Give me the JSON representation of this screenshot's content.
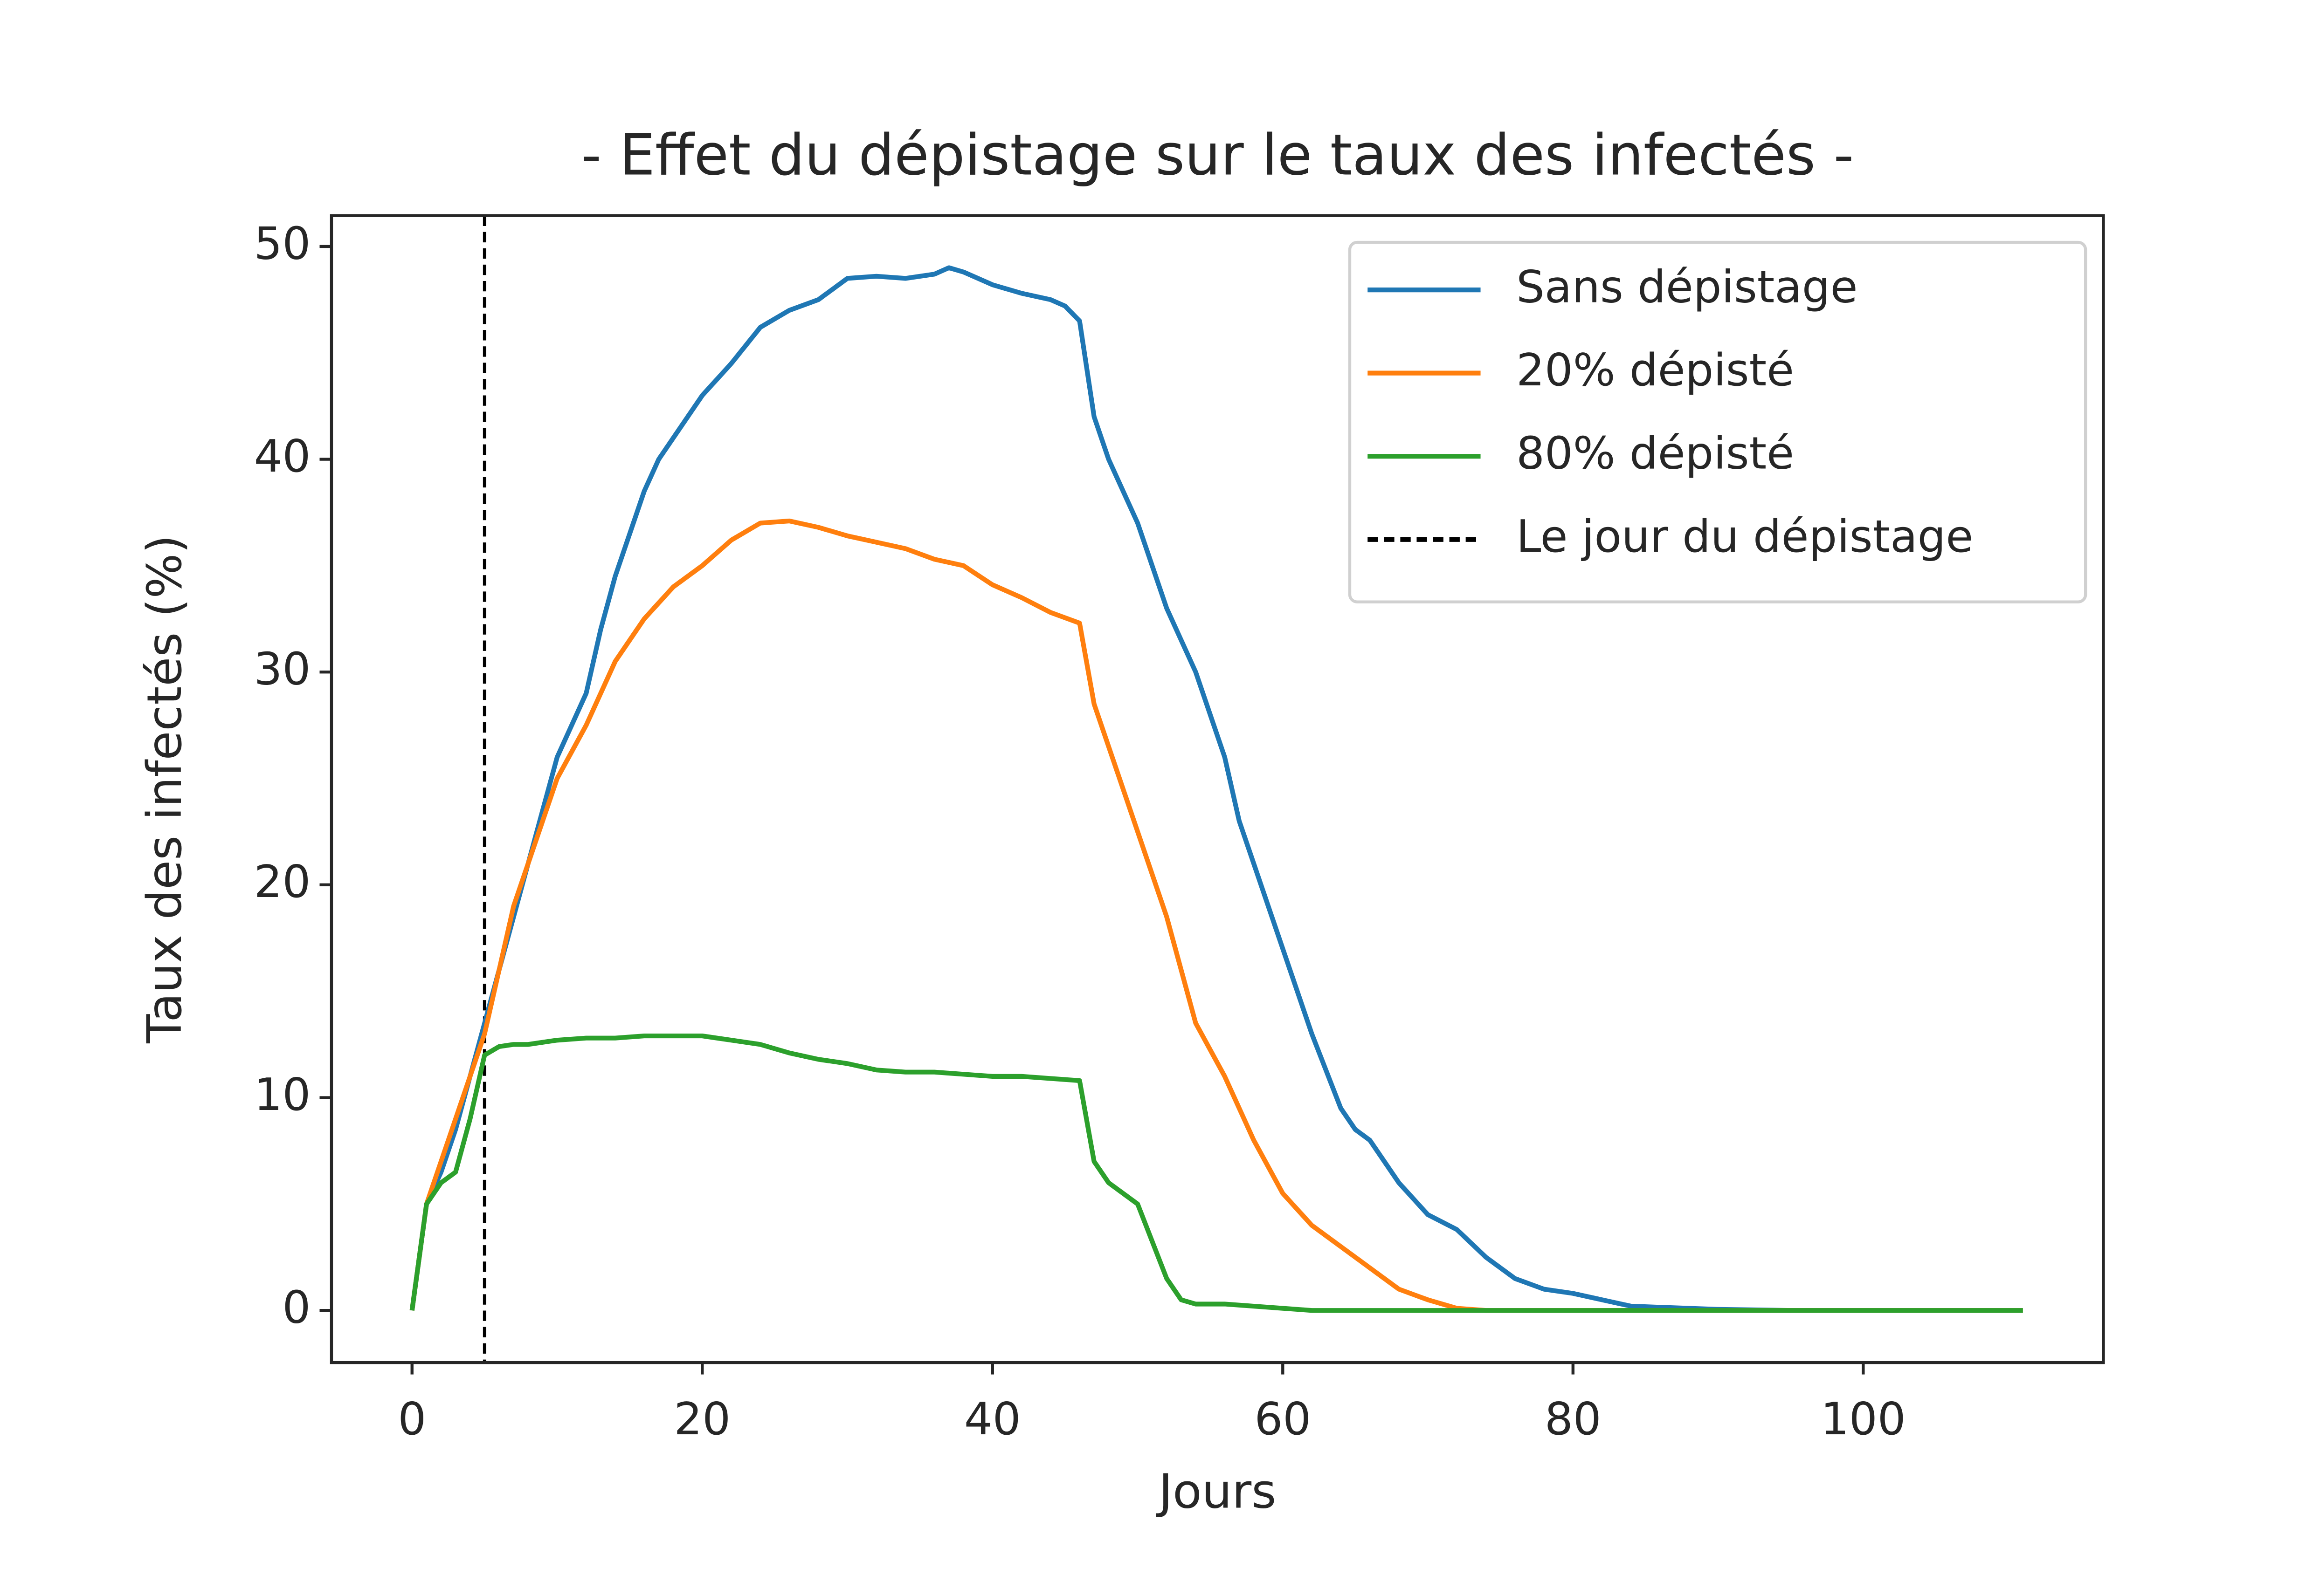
{
  "chart_data": {
    "type": "line",
    "title": "- Effet du dépistage sur le taux des infectés -",
    "x_label": "Jours",
    "y_label": "Taux des infectés (%)",
    "xlim": [
      -5.55,
      116.55
    ],
    "xticks": [
      0,
      20,
      40,
      60,
      80,
      100
    ],
    "ylim": [
      -2.45,
      51.45
    ],
    "yticks": [
      0,
      10,
      20,
      30,
      40,
      50
    ],
    "legend": "upper right",
    "series": [
      {
        "name": "Sans dépistage",
        "color": "#1f77b4",
        "x": [
          0,
          1,
          2,
          3,
          4,
          5,
          6,
          7,
          8,
          9,
          10,
          11,
          12,
          13,
          14,
          15,
          16,
          17,
          18,
          19,
          20,
          22,
          24,
          26,
          28,
          30,
          32,
          34,
          36,
          37,
          38,
          40,
          42,
          44,
          45,
          46,
          47,
          48,
          50,
          52,
          54,
          56,
          57,
          58,
          60,
          62,
          64,
          65,
          66,
          68,
          70,
          72,
          74,
          76,
          78,
          80,
          82,
          84,
          88,
          90,
          95,
          100,
          111
        ],
        "values": [
          0,
          5,
          6.5,
          8.5,
          11,
          13.5,
          16,
          18.5,
          21,
          23.5,
          26,
          27.5,
          29,
          32,
          34.5,
          36.5,
          38.5,
          40,
          41,
          42,
          43,
          44.5,
          46.2,
          47,
          47.5,
          48.5,
          48.6,
          48.5,
          48.7,
          49,
          48.8,
          48.2,
          47.8,
          47.5,
          47.2,
          46.5,
          42,
          40,
          37,
          33,
          30,
          26,
          23,
          21,
          17,
          13,
          9.5,
          8.5,
          8,
          6,
          4.5,
          3.8,
          2.5,
          1.5,
          1,
          0.8,
          0.5,
          0.2,
          0.1,
          0.05,
          0,
          0,
          0
        ]
      },
      {
        "name": "20% dépisté",
        "color": "#ff7f0e",
        "x": [
          0,
          1,
          2,
          3,
          4,
          5,
          6,
          7,
          8,
          9,
          10,
          12,
          14,
          16,
          18,
          20,
          22,
          24,
          26,
          28,
          30,
          32,
          34,
          36,
          38,
          40,
          42,
          44,
          46,
          47,
          48,
          50,
          52,
          54,
          56,
          58,
          60,
          62,
          64,
          66,
          68,
          70,
          72,
          74,
          111
        ],
        "values": [
          0,
          5,
          7,
          9,
          11,
          13,
          16,
          19,
          21,
          23,
          25,
          27.5,
          30.5,
          32.5,
          34,
          35,
          36.2,
          37,
          37.1,
          36.8,
          36.4,
          36.1,
          35.8,
          35.3,
          35,
          34.1,
          33.5,
          32.8,
          32.3,
          28.5,
          26.5,
          22.5,
          18.5,
          13.5,
          11,
          8,
          5.5,
          4,
          3,
          2,
          1,
          0.5,
          0.1,
          0,
          0
        ]
      },
      {
        "name": "80% dépisté",
        "color": "#2ca02c",
        "x": [
          0,
          1,
          2,
          3,
          4,
          5,
          6,
          7,
          8,
          10,
          12,
          14,
          16,
          18,
          20,
          22,
          24,
          26,
          28,
          30,
          32,
          34,
          36,
          38,
          40,
          42,
          44,
          46,
          47,
          48,
          50,
          52,
          53,
          54,
          56,
          58,
          60,
          62,
          111
        ],
        "values": [
          0,
          5,
          6,
          6.5,
          9,
          12,
          12.4,
          12.5,
          12.5,
          12.7,
          12.8,
          12.8,
          12.9,
          12.9,
          12.9,
          12.7,
          12.5,
          12.1,
          11.8,
          11.6,
          11.3,
          11.2,
          11.2,
          11.1,
          11,
          11,
          10.9,
          10.8,
          7,
          6,
          5,
          1.5,
          0.5,
          0.3,
          0.3,
          0.2,
          0.1,
          0,
          0
        ]
      }
    ],
    "vlines": [
      {
        "name": "Le jour du dépistage",
        "color": "#000000",
        "x": 5,
        "style": "dashed"
      }
    ]
  }
}
